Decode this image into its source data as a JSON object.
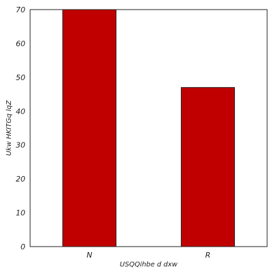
{
  "chart_data": {
    "type": "bar",
    "categories": [
      "N",
      "R"
    ],
    "values": [
      70,
      47
    ],
    "xlabel": "USQQihbe d dxw",
    "ylabel": "Ukw HKITGq lqZ",
    "ylim": [
      0,
      70
    ],
    "yticks": [
      0,
      10,
      20,
      30,
      40,
      50,
      60,
      70
    ],
    "grid": false,
    "colors": {
      "bar_fill": "#c00000",
      "bar_edge": "#222222",
      "axes_edge": "#222222",
      "background": "#ffffff"
    }
  }
}
